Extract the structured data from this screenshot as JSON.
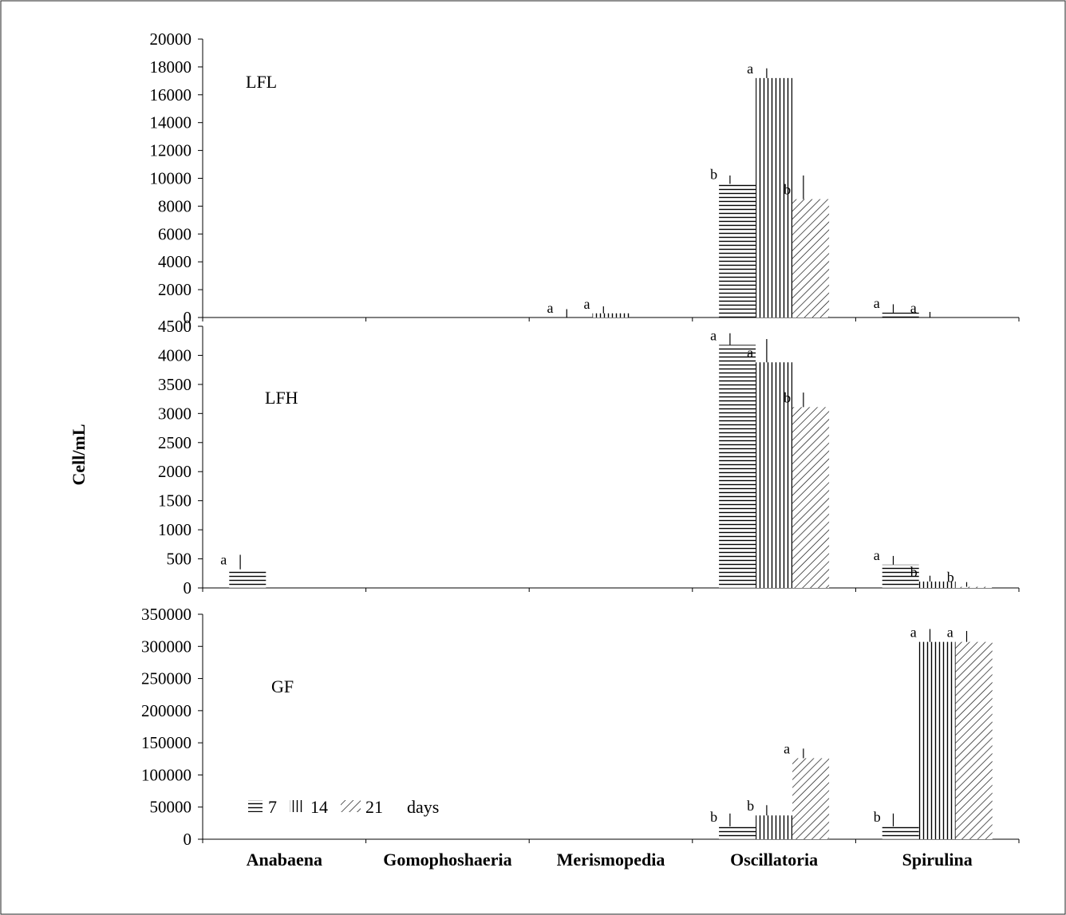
{
  "chart_data": {
    "type": "bar",
    "ylabel": "Cell/mL",
    "categories": [
      "Anabaena",
      "Gomophoshaeria",
      "Merismopedia",
      "Oscillatoria",
      "Spirulina"
    ],
    "legend": {
      "placement": "bottom-left",
      "unit_label": "days",
      "entries": [
        {
          "name": "7",
          "pattern": "horizontal"
        },
        {
          "name": "14",
          "pattern": "vertical"
        },
        {
          "name": "21",
          "pattern": "diagonal"
        }
      ]
    },
    "panels": [
      {
        "label": "LFL",
        "ylim": [
          0,
          20000
        ],
        "yticks": [
          0,
          2000,
          4000,
          6000,
          8000,
          10000,
          12000,
          14000,
          16000,
          18000,
          20000
        ],
        "series": [
          {
            "name": "7",
            "values": [
              0,
              0,
              0,
              9600,
              350
            ],
            "errors": [
              0,
              0,
              600,
              600,
              600
            ],
            "letters": [
              "",
              "",
              "a",
              "b",
              "a"
            ]
          },
          {
            "name": "14",
            "values": [
              0,
              0,
              300,
              17200,
              0
            ],
            "errors": [
              0,
              0,
              500,
              700,
              400
            ],
            "letters": [
              "",
              "",
              "a",
              "a",
              "a"
            ]
          },
          {
            "name": "21",
            "values": [
              0,
              0,
              0,
              8500,
              0
            ],
            "errors": [
              0,
              0,
              0,
              1700,
              0
            ],
            "letters": [
              "",
              "",
              "",
              "b",
              ""
            ]
          }
        ]
      },
      {
        "label": "LFH",
        "ylim": [
          0,
          4500
        ],
        "yticks": [
          0,
          500,
          1000,
          1500,
          2000,
          2500,
          3000,
          3500,
          4000,
          4500
        ],
        "series": [
          {
            "name": "7",
            "values": [
              320,
              0,
              0,
              4180,
              400
            ],
            "errors": [
              250,
              0,
              0,
              200,
              150
            ],
            "letters": [
              "a",
              "",
              "",
              "a",
              "a"
            ]
          },
          {
            "name": "14",
            "values": [
              0,
              0,
              0,
              3880,
              110
            ],
            "errors": [
              0,
              0,
              0,
              400,
              100
            ],
            "letters": [
              "",
              "",
              "",
              "a",
              "b"
            ]
          },
          {
            "name": "21",
            "values": [
              0,
              0,
              0,
              3110,
              20
            ],
            "errors": [
              0,
              0,
              0,
              250,
              80
            ],
            "letters": [
              "",
              "",
              "",
              "b",
              "b"
            ]
          }
        ]
      },
      {
        "label": "GF",
        "ylim": [
          0,
          350000
        ],
        "yticks": [
          0,
          50000,
          100000,
          150000,
          200000,
          250000,
          300000,
          350000
        ],
        "series": [
          {
            "name": "7",
            "values": [
              0,
              0,
              0,
              20000,
              20000
            ],
            "errors": [
              0,
              0,
              0,
              20000,
              20000
            ],
            "letters": [
              "",
              "",
              "",
              "b",
              "b"
            ]
          },
          {
            "name": "14",
            "values": [
              0,
              0,
              0,
              37000,
              307000
            ],
            "errors": [
              0,
              0,
              0,
              16000,
              20000
            ],
            "letters": [
              "",
              "",
              "",
              "b",
              "a"
            ]
          },
          {
            "name": "21",
            "values": [
              0,
              0,
              0,
              126000,
              307000
            ],
            "errors": [
              0,
              0,
              0,
              15000,
              17000
            ],
            "letters": [
              "",
              "",
              "",
              "a",
              "a"
            ]
          }
        ]
      }
    ]
  }
}
